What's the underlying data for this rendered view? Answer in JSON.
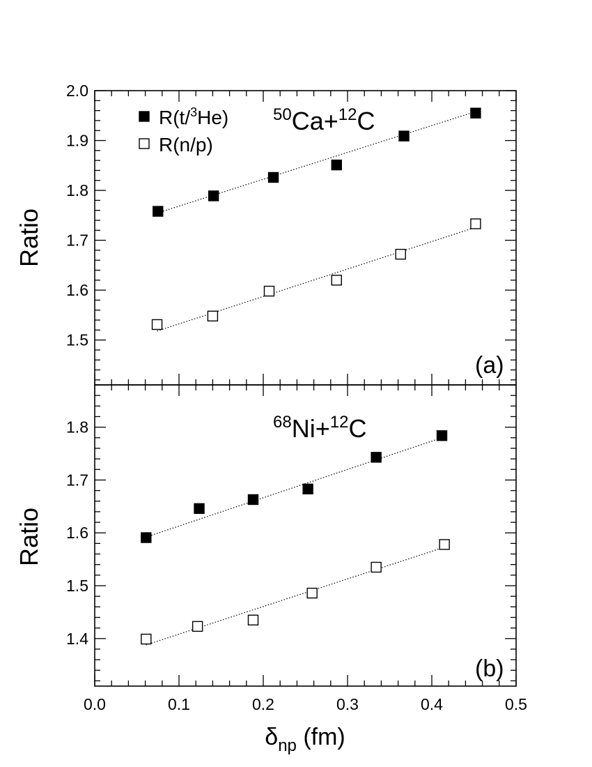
{
  "chart_data": [
    {
      "type": "scatter",
      "panel_label": "(a)",
      "reaction": {
        "sup1": "50",
        "el1": "Ca+",
        "sup2": "12",
        "el2": "C"
      },
      "ylabel": "Ratio",
      "xlabel": "",
      "xlim": [
        0.0,
        0.5
      ],
      "ylim": [
        1.41,
        2.0
      ],
      "yticks": [
        "1.5",
        "1.6",
        "1.7",
        "1.8",
        "1.9",
        "2.0"
      ],
      "legend": {
        "position": "top-left",
        "entries": [
          "R(t/³He)",
          "R(n/p)"
        ]
      },
      "series": [
        {
          "name": "R(t/³He)",
          "marker": "filled-square",
          "x": [
            0.075,
            0.141,
            0.212,
            0.287,
            0.367,
            0.452
          ],
          "y": [
            1.758,
            1.789,
            1.826,
            1.851,
            1.909,
            1.955
          ],
          "fit": {
            "x": [
              0.075,
              0.452
            ],
            "y": [
              1.755,
              1.958
            ]
          }
        },
        {
          "name": "R(n/p)",
          "marker": "open-square",
          "x": [
            0.074,
            0.14,
            0.207,
            0.287,
            0.363,
            0.452
          ],
          "y": [
            1.531,
            1.548,
            1.598,
            1.62,
            1.672,
            1.733
          ],
          "fit": {
            "x": [
              0.074,
              0.452
            ],
            "y": [
              1.518,
              1.726
            ]
          }
        }
      ]
    },
    {
      "type": "scatter",
      "panel_label": "(b)",
      "reaction": {
        "sup1": "68",
        "el1": "Ni+",
        "sup2": "12",
        "el2": "C"
      },
      "ylabel": "Ratio",
      "xlabel": "δnp (fm)",
      "xlim": [
        0.0,
        0.5
      ],
      "ylim": [
        1.31,
        1.88
      ],
      "xticks": [
        "0.0",
        "0.1",
        "0.2",
        "0.3",
        "0.4",
        "0.5"
      ],
      "yticks": [
        "1.4",
        "1.5",
        "1.6",
        "1.7",
        "1.8"
      ],
      "series": [
        {
          "name": "R(t/³He)",
          "marker": "filled-square",
          "x": [
            0.061,
            0.124,
            0.188,
            0.253,
            0.334,
            0.412
          ],
          "y": [
            1.591,
            1.646,
            1.663,
            1.683,
            1.743,
            1.784
          ],
          "fit": {
            "x": [
              0.061,
              0.412
            ],
            "y": [
              1.592,
              1.78
            ]
          }
        },
        {
          "name": "R(n/p)",
          "marker": "open-square",
          "x": [
            0.061,
            0.122,
            0.188,
            0.258,
            0.334,
            0.415
          ],
          "y": [
            1.399,
            1.423,
            1.435,
            1.486,
            1.535,
            1.578
          ],
          "fit": {
            "x": [
              0.061,
              0.415
            ],
            "y": [
              1.388,
              1.573
            ]
          }
        }
      ]
    }
  ],
  "axis_text": {
    "x_label_main": "δ",
    "x_label_sub": "np",
    "x_label_unit": " (fm)"
  },
  "legend_text": {
    "filled_prefix": "R(t/",
    "filled_sup": "3",
    "filled_suffix": "He)",
    "open_label": "R(n/p)"
  }
}
